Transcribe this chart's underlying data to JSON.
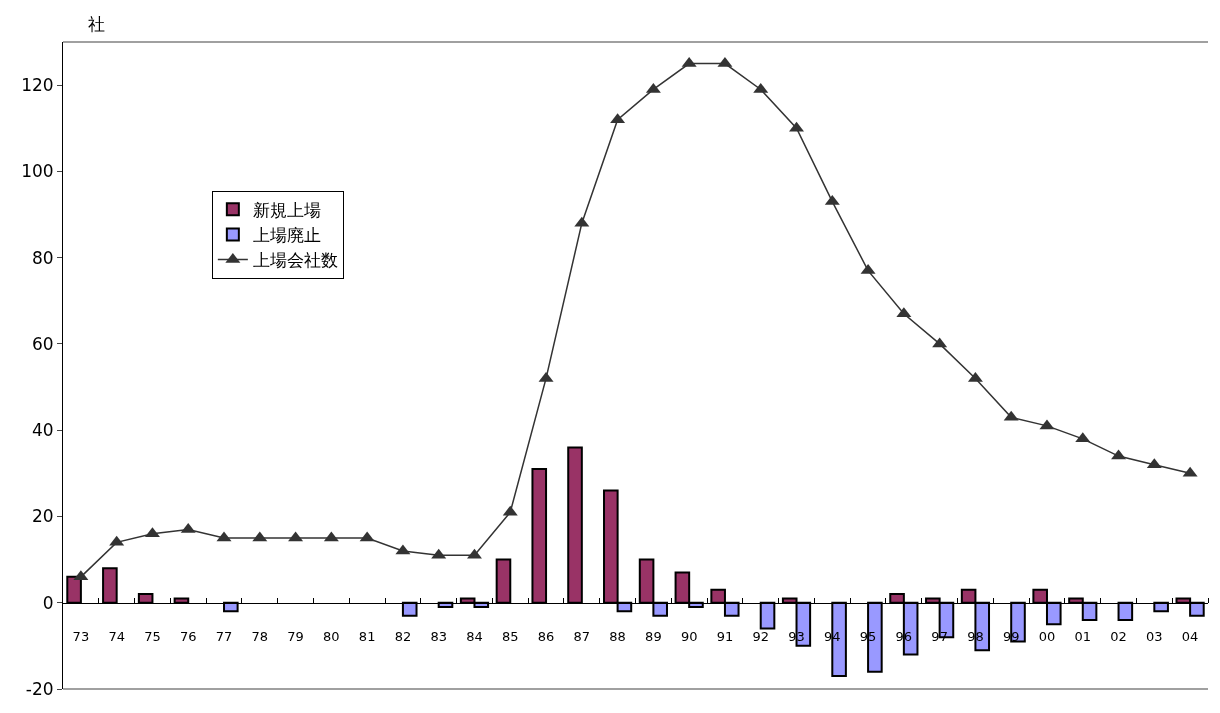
{
  "chart_data": {
    "type": "bar",
    "ylabel": "社",
    "categories": [
      "73",
      "74",
      "75",
      "76",
      "77",
      "78",
      "79",
      "80",
      "81",
      "82",
      "83",
      "84",
      "85",
      "86",
      "87",
      "88",
      "89",
      "90",
      "91",
      "92",
      "93",
      "94",
      "95",
      "96",
      "97",
      "98",
      "99",
      "00",
      "01",
      "02",
      "03",
      "04"
    ],
    "series": [
      {
        "name": "新規上場",
        "color": "#993366",
        "values": [
          6,
          8,
          2,
          1,
          null,
          null,
          null,
          null,
          null,
          null,
          null,
          1,
          10,
          31,
          36,
          26,
          10,
          7,
          3,
          null,
          1,
          null,
          null,
          2,
          1,
          3,
          null,
          3,
          1,
          null,
          null,
          1
        ]
      },
      {
        "name": "上場廃止",
        "color": "#9999ff",
        "values": [
          null,
          null,
          null,
          null,
          -2,
          null,
          null,
          null,
          null,
          -3,
          -1,
          -1,
          null,
          null,
          null,
          -2,
          -3,
          -1,
          -3,
          -6,
          -10,
          -17,
          -16,
          -12,
          -8,
          -11,
          -9,
          -5,
          -4,
          -4,
          -2,
          -3
        ]
      },
      {
        "name": "上場会社数",
        "type": "line",
        "color": "#333333",
        "marker": "triangle",
        "values": [
          6,
          14,
          16,
          17,
          15,
          15,
          15,
          15,
          15,
          12,
          11,
          11,
          21,
          52,
          88,
          112,
          119,
          125,
          125,
          119,
          110,
          93,
          77,
          67,
          60,
          52,
          43,
          41,
          38,
          34,
          32,
          30
        ]
      }
    ],
    "ylim": [
      -20,
      130
    ],
    "yticks": [
      -20,
      0,
      20,
      40,
      60,
      80,
      100,
      120
    ],
    "legend": "top left"
  }
}
